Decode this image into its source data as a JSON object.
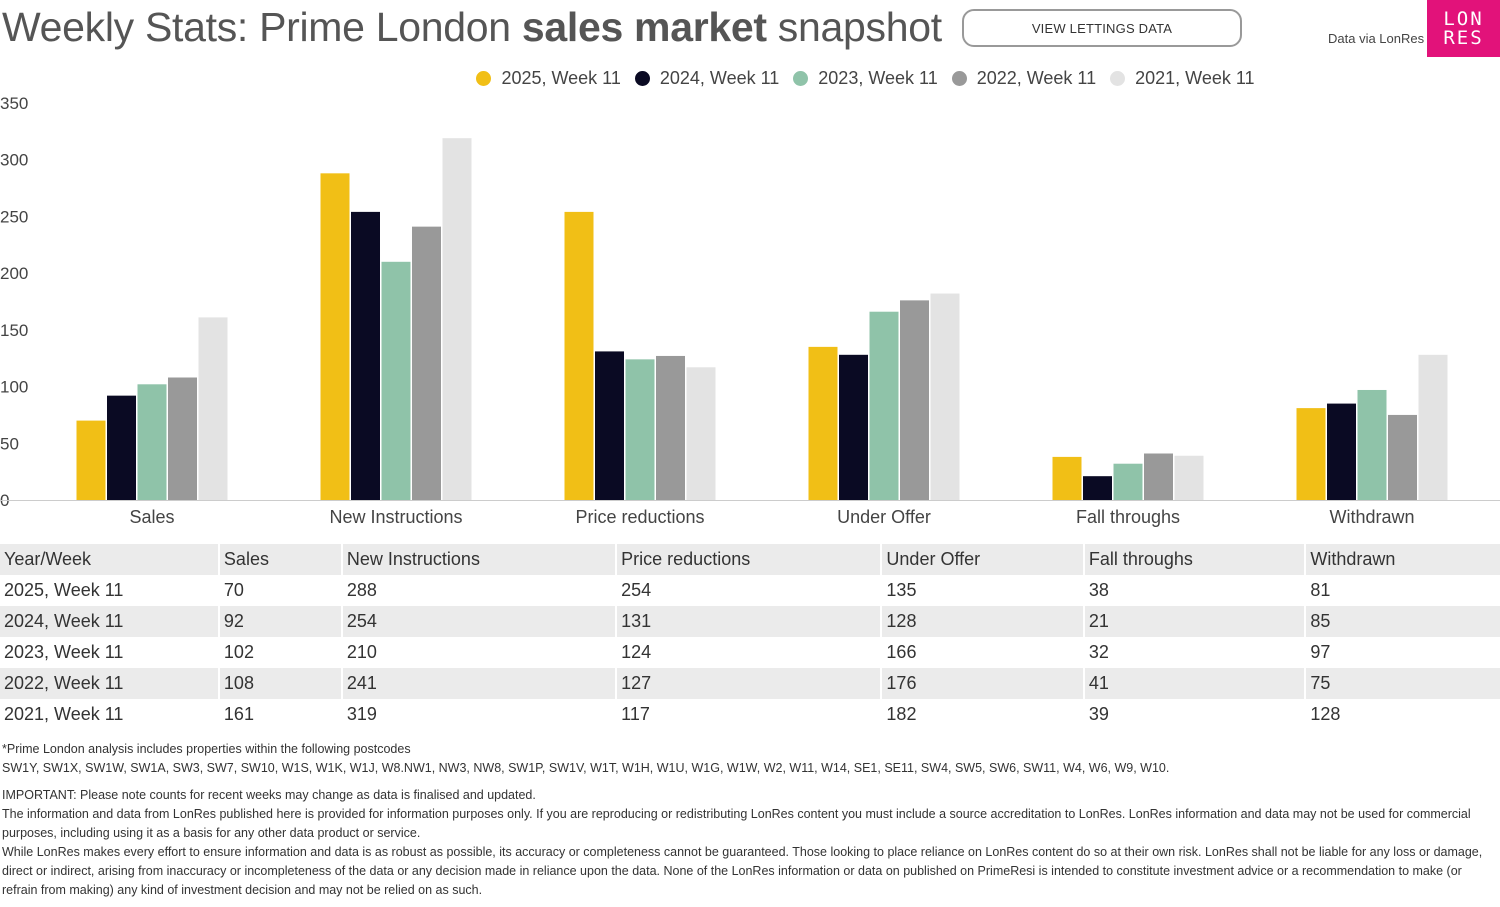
{
  "header": {
    "title_part1": "Weekly Stats: Prime London ",
    "title_bold": "sales market",
    "title_part2": " snapshot",
    "lettings_button": "VIEW LETTINGS DATA",
    "data_via": "Data via LonRes",
    "logo_line1": "LON",
    "logo_line2": "RES",
    "logo_color": "#e2127a"
  },
  "chart_data": {
    "type": "bar",
    "categories": [
      "Sales",
      "New Instructions",
      "Price reductions",
      "Under Offer",
      "Fall throughs",
      "Withdrawn"
    ],
    "series": [
      {
        "name": "2025, Week 11",
        "color": "#f1bf16",
        "values": [
          70,
          288,
          254,
          135,
          38,
          81
        ]
      },
      {
        "name": "2024, Week 11",
        "color": "#0a0a23",
        "values": [
          92,
          254,
          131,
          128,
          21,
          85
        ]
      },
      {
        "name": "2023, Week 11",
        "color": "#8fc3a9",
        "values": [
          102,
          210,
          124,
          166,
          32,
          97
        ]
      },
      {
        "name": "2022, Week 11",
        "color": "#999999",
        "values": [
          108,
          241,
          127,
          176,
          41,
          75
        ]
      },
      {
        "name": "2021, Week 11",
        "color": "#e3e3e3",
        "values": [
          161,
          319,
          117,
          182,
          39,
          128
        ]
      }
    ],
    "ylim": [
      0,
      350
    ],
    "yticks": [
      0,
      50,
      100,
      150,
      200,
      250,
      300,
      350
    ],
    "legend_position": "top-center",
    "grid": false
  },
  "table": {
    "headers": [
      "Year/Week",
      "Sales",
      "New Instructions",
      "Price reductions",
      "Under Offer",
      "Fall throughs",
      "Withdrawn"
    ],
    "rows": [
      [
        "2025, Week 11",
        "70",
        "288",
        "254",
        "135",
        "38",
        "81"
      ],
      [
        "2024, Week 11",
        "92",
        "254",
        "131",
        "128",
        "21",
        "85"
      ],
      [
        "2023, Week 11",
        "102",
        "210",
        "124",
        "166",
        "32",
        "97"
      ],
      [
        "2022, Week 11",
        "108",
        "241",
        "127",
        "176",
        "41",
        "75"
      ],
      [
        "2021, Week 11",
        "161",
        "319",
        "117",
        "182",
        "39",
        "128"
      ]
    ]
  },
  "notes": {
    "postcodes_intro": "*Prime London analysis includes properties within the following postcodes",
    "postcodes_list": "SW1Y, SW1X, SW1W, SW1A, SW3, SW7, SW10, W1S, W1K, W1J, W8.NW1, NW3, NW8, SW1P, SW1V, W1T, W1H, W1U, W1G, W1W, W2, W11, W14, SE1, SE11, SW4, SW5, SW6, SW11, W4, W6, W9, W10.",
    "important": "IMPORTANT: Please note counts for recent weeks may change as data is finalised and updated.",
    "disclaimer1": "The information and data from LonRes published here is provided for information purposes only. If you are reproducing or redistributing LonRes content you must include a source accreditation to LonRes. LonRes information and data may not be used for commercial purposes, including using it as a basis for any other data product or service.",
    "disclaimer2": "While LonRes makes every effort to ensure information and data is as robust as possible, its accuracy or completeness cannot be guaranteed. Those looking to place reliance on LonRes content do so at their own risk. LonRes shall not be liable for any loss or damage, direct or indirect, arising from inaccuracy or incompleteness of the data or any decision made in reliance upon the data. None of the LonRes information or data on published on PrimeResi is intended to constitute investment advice or a recommendation to make (or refrain from making) any kind of investment decision and may not be relied on as such."
  }
}
